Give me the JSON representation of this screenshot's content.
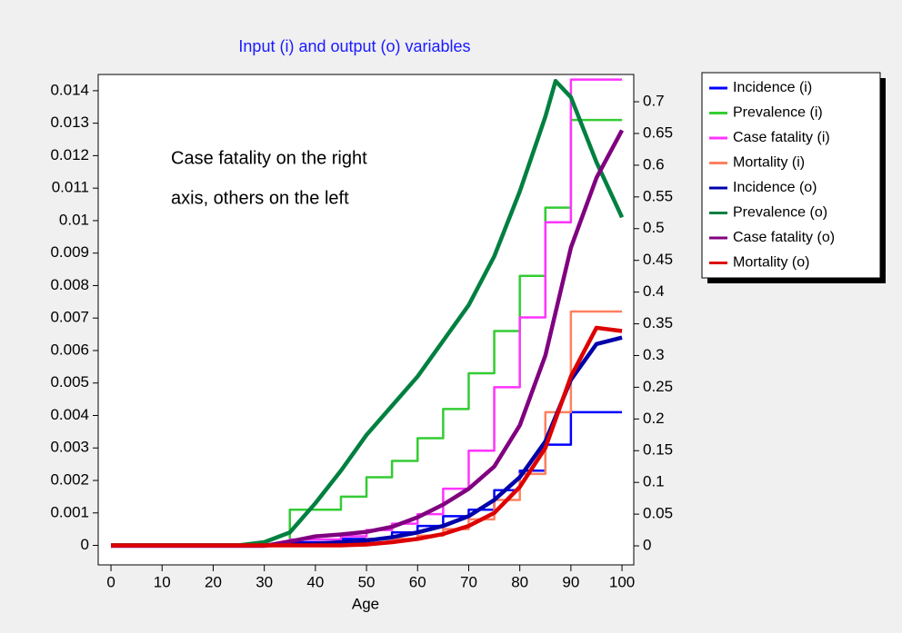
{
  "chart_data": {
    "type": "line",
    "title": "Input (i) and output (o) variables",
    "x_label": "Age",
    "annotation": [
      "Case fatality on the right",
      "axis, others on the left"
    ],
    "xlim": [
      -2.5,
      102.3
    ],
    "xticks": [
      0,
      10,
      20,
      30,
      40,
      50,
      60,
      70,
      80,
      90,
      100
    ],
    "ylim": [
      -0.0006,
      0.0145
    ],
    "yticks": [
      0,
      0.001,
      0.002,
      0.003,
      0.004,
      0.005,
      0.006,
      0.007,
      0.008,
      0.009,
      0.01,
      0.011,
      0.012,
      0.013,
      0.014
    ],
    "y2lim": [
      -0.03,
      0.743
    ],
    "y2ticks": [
      0,
      0.05,
      0.1,
      0.15,
      0.2,
      0.25,
      0.3,
      0.35,
      0.4,
      0.45,
      0.5,
      0.55,
      0.6,
      0.65,
      0.7
    ],
    "legend": "right",
    "series": [
      {
        "name": "Incidence (i)",
        "color": "#0000ff",
        "x": [
          0,
          35,
          35,
          45,
          45,
          55,
          55,
          60,
          60,
          65,
          65,
          70,
          70,
          75,
          75,
          80,
          80,
          85,
          85,
          90,
          90,
          100
        ],
        "values": [
          0,
          0,
          0.0001,
          0.0001,
          0.0002,
          0.0002,
          0.0004,
          0.0004,
          0.0006,
          0.0006,
          0.0009,
          0.0009,
          0.0011,
          0.0011,
          0.0017,
          0.0017,
          0.0023,
          0.0023,
          0.0031,
          0.0031,
          0.0041,
          0.0041
        ]
      },
      {
        "name": "Prevalence (i)",
        "color": "#33cc33",
        "x": [
          0,
          35,
          35,
          45,
          45,
          50,
          50,
          55,
          55,
          60,
          60,
          65,
          65,
          70,
          70,
          75,
          75,
          80,
          80,
          85,
          85,
          90,
          90,
          100
        ],
        "values": [
          0,
          0,
          0.0011,
          0.0011,
          0.0015,
          0.0015,
          0.0021,
          0.0021,
          0.0026,
          0.0026,
          0.0033,
          0.0033,
          0.0042,
          0.0042,
          0.0053,
          0.0053,
          0.0066,
          0.0066,
          0.0083,
          0.0083,
          0.0104,
          0.0104,
          0.0131,
          0.0131
        ]
      },
      {
        "name": "Case fatality (i)",
        "color": "#ff33ff",
        "axis": "y2",
        "x": [
          0,
          35,
          35,
          45,
          45,
          50,
          50,
          55,
          55,
          60,
          60,
          65,
          65,
          70,
          70,
          75,
          75,
          80,
          80,
          85,
          85,
          90,
          90,
          100
        ],
        "values": [
          0,
          0,
          0.01,
          0.01,
          0.015,
          0.015,
          0.025,
          0.025,
          0.035,
          0.035,
          0.05,
          0.05,
          0.09,
          0.09,
          0.15,
          0.15,
          0.25,
          0.25,
          0.36,
          0.36,
          0.51,
          0.51,
          0.735,
          0.735
        ]
      },
      {
        "name": "Mortality (i)",
        "color": "#ff8060",
        "x": [
          0,
          50,
          50,
          60,
          60,
          65,
          65,
          70,
          70,
          75,
          75,
          80,
          80,
          85,
          85,
          90,
          90,
          100
        ],
        "values": [
          0,
          0,
          0.0002,
          0.0002,
          0.0003,
          0.0003,
          0.0005,
          0.0005,
          0.0008,
          0.0008,
          0.0014,
          0.0014,
          0.0022,
          0.0022,
          0.0041,
          0.0041,
          0.0072,
          0.0072
        ]
      },
      {
        "name": "Incidence (o)",
        "color": "#0000aa",
        "x": [
          0,
          5,
          10,
          15,
          20,
          25,
          30,
          35,
          40,
          45,
          50,
          55,
          60,
          65,
          70,
          75,
          80,
          85,
          90,
          95,
          100
        ],
        "values": [
          0,
          0,
          0,
          0,
          0,
          0,
          0,
          2e-05,
          5e-05,
          0.0001,
          0.00015,
          0.00025,
          0.0004,
          0.0006,
          0.0009,
          0.0014,
          0.0021,
          0.0032,
          0.0051,
          0.0062,
          0.0064
        ]
      },
      {
        "name": "Prevalence (o)",
        "color": "#008040",
        "x": [
          0,
          5,
          10,
          15,
          20,
          25,
          30,
          35,
          40,
          45,
          50,
          55,
          60,
          65,
          70,
          75,
          80,
          85,
          87,
          90,
          95,
          100
        ],
        "values": [
          0,
          0,
          0,
          0,
          0,
          0,
          0.0001,
          0.0004,
          0.0013,
          0.0023,
          0.0034,
          0.0043,
          0.0052,
          0.0063,
          0.0074,
          0.0089,
          0.0109,
          0.0132,
          0.0143,
          0.0138,
          0.0118,
          0.0101
        ]
      },
      {
        "name": "Case fatality (o)",
        "color": "#800080",
        "axis": "y2",
        "x": [
          0,
          5,
          10,
          15,
          20,
          25,
          30,
          35,
          40,
          45,
          50,
          55,
          60,
          65,
          70,
          75,
          80,
          85,
          90,
          95,
          100
        ],
        "values": [
          0,
          0,
          0,
          0,
          0,
          0,
          0,
          0.007,
          0.015,
          0.018,
          0.022,
          0.03,
          0.045,
          0.065,
          0.09,
          0.125,
          0.19,
          0.3,
          0.47,
          0.58,
          0.655
        ]
      },
      {
        "name": "Mortality (o)",
        "color": "#dd0000",
        "x": [
          0,
          5,
          10,
          15,
          20,
          25,
          30,
          35,
          40,
          45,
          50,
          55,
          60,
          65,
          70,
          75,
          80,
          85,
          90,
          95,
          100
        ],
        "values": [
          0,
          0,
          0,
          0,
          0,
          0,
          0,
          0,
          0,
          0,
          3e-05,
          0.0001,
          0.0002,
          0.00035,
          0.0006,
          0.001,
          0.0018,
          0.003,
          0.0052,
          0.0067,
          0.0066
        ]
      }
    ]
  }
}
